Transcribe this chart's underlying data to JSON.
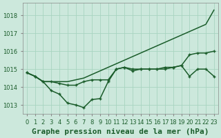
{
  "title": "Graphe pression niveau de la mer (hPa)",
  "bg_color": "#cce8dc",
  "grid_color": "#a8d4c0",
  "line_color": "#1a5c2a",
  "x_labels": [
    "0",
    "1",
    "2",
    "3",
    "4",
    "5",
    "6",
    "7",
    "8",
    "9",
    "10",
    "11",
    "12",
    "13",
    "14",
    "15",
    "16",
    "17",
    "18",
    "19",
    "20",
    "21",
    "22",
    "23"
  ],
  "ylim": [
    1012.5,
    1018.7
  ],
  "yticks": [
    1013,
    1014,
    1015,
    1016,
    1017,
    1018
  ],
  "line_smooth": [
    1014.8,
    1014.6,
    1014.3,
    1014.3,
    1014.3,
    1014.3,
    1014.4,
    1014.5,
    1014.7,
    1014.9,
    1015.1,
    1015.3,
    1015.5,
    1015.7,
    1015.9,
    1016.1,
    1016.3,
    1016.5,
    1016.7,
    1016.9,
    1017.1,
    1017.3,
    1017.5,
    1018.3
  ],
  "line_mid": [
    1014.8,
    1014.6,
    1014.3,
    1014.3,
    1014.2,
    1014.1,
    1014.1,
    1014.3,
    1014.4,
    1014.4,
    1014.4,
    1015.0,
    1015.1,
    1015.0,
    1015.0,
    1015.0,
    1015.0,
    1015.1,
    1015.1,
    1015.2,
    1015.8,
    1015.9,
    1015.9,
    1016.0
  ],
  "line_low": [
    1014.8,
    1014.6,
    1014.3,
    1013.8,
    1013.6,
    1013.1,
    1013.0,
    1012.85,
    1013.3,
    1013.35,
    1014.3,
    1015.0,
    1015.1,
    1014.9,
    1015.0,
    1015.0,
    1015.0,
    1015.0,
    1015.1,
    1015.2,
    1014.6,
    1015.0,
    1015.0,
    1014.6
  ],
  "title_fontsize": 8.0,
  "tick_fontsize": 6.0,
  "marker_size": 3.5,
  "line_width": 1.1
}
